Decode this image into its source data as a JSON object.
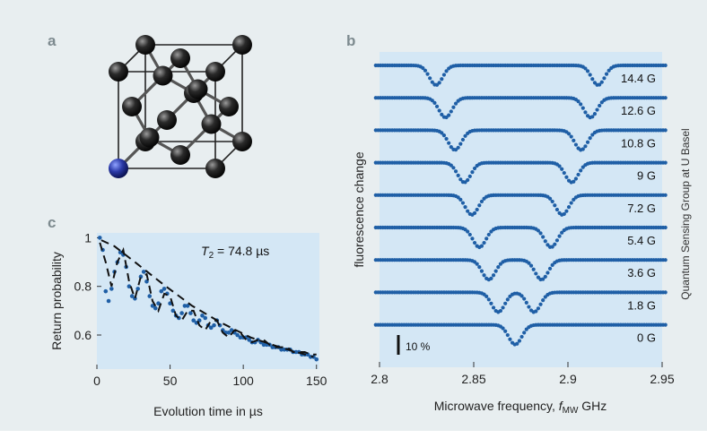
{
  "figure": {
    "panel_labels": [
      "a",
      "b",
      "c"
    ],
    "credit": "Quantum Sensing Group at U Basel",
    "background_color": "#e8eef0",
    "plot_color": "#d4e7f5",
    "data_color": "#1f5fa6",
    "fit_color": "#111111",
    "atom_color": "#1a1a1a",
    "nv_atom_color": "#2b3aa8"
  },
  "chart_data": [
    {
      "type": "line",
      "panel": "b",
      "title": "",
      "xlabel_prefix": "Microwave frequency, ",
      "xlabel_symbol": "f",
      "xlabel_subscript": "MW",
      "xlabel_unit": " GHz",
      "ylabel": "fluorescence change",
      "xlim": [
        2.8,
        2.95
      ],
      "x_ticks": [
        "2.8",
        "2.85",
        "2.9",
        "2.95"
      ],
      "x_tick_values": [
        2.8,
        2.85,
        2.9,
        2.95
      ],
      "scale_bar_label": "10 %",
      "scale_bar_value": 0.1,
      "center_frequency": 2.872,
      "dip_depth": 0.1,
      "series": [
        {
          "name": "14.4 G",
          "field_G": 14.4,
          "dips_GHz": [
            2.83,
            2.916
          ]
        },
        {
          "name": "12.6 G",
          "field_G": 12.6,
          "dips_GHz": [
            2.835,
            2.912
          ]
        },
        {
          "name": "10.8 G",
          "field_G": 10.8,
          "dips_GHz": [
            2.84,
            2.907
          ]
        },
        {
          "name": "9 G",
          "field_G": 9,
          "dips_GHz": [
            2.845,
            2.902
          ]
        },
        {
          "name": "7.2 G",
          "field_G": 7.2,
          "dips_GHz": [
            2.849,
            2.897
          ]
        },
        {
          "name": "5.4 G",
          "field_G": 5.4,
          "dips_GHz": [
            2.853,
            2.891
          ]
        },
        {
          "name": "3.6 G",
          "field_G": 3.6,
          "dips_GHz": [
            2.858,
            2.886
          ]
        },
        {
          "name": "1.8 G",
          "field_G": 1.8,
          "dips_GHz": [
            2.863,
            2.882
          ]
        },
        {
          "name": "0 G",
          "field_G": 0,
          "dips_GHz": [
            2.872
          ]
        }
      ]
    },
    {
      "type": "scatter",
      "panel": "c",
      "title": "",
      "xlabel": "Evolution time in µs",
      "ylabel": "Return probability",
      "xlim": [
        0,
        152
      ],
      "ylim": [
        0.46,
        1.02
      ],
      "x_ticks": [
        "0",
        "50",
        "100",
        "150"
      ],
      "x_tick_values": [
        0,
        50,
        100,
        150
      ],
      "y_ticks": [
        "1",
        "0.8",
        "0.6"
      ],
      "y_tick_values": [
        1,
        0.8,
        0.6
      ],
      "annotation_symbol": "T",
      "annotation_subscript": "2",
      "annotation_value": " = 74.8 µs",
      "T2_us": 74.8,
      "envelope": {
        "x": [
          3,
          12,
          26,
          45,
          65,
          85,
          105,
          125,
          148
        ],
        "y": [
          0.99,
          0.965,
          0.9,
          0.81,
          0.72,
          0.65,
          0.59,
          0.55,
          0.51
        ]
      },
      "fit": {
        "x": [
          2,
          6,
          10,
          14,
          18,
          22,
          26,
          30,
          34,
          38,
          42,
          46,
          50,
          54,
          58,
          62,
          66,
          70,
          74,
          78,
          82,
          86,
          90,
          94,
          98,
          102,
          106,
          110,
          114,
          118,
          122,
          126,
          130,
          134,
          138,
          142,
          146,
          150
        ],
        "y": [
          0.98,
          0.9,
          0.8,
          0.9,
          0.95,
          0.82,
          0.75,
          0.84,
          0.85,
          0.74,
          0.7,
          0.77,
          0.76,
          0.68,
          0.66,
          0.7,
          0.7,
          0.64,
          0.62,
          0.66,
          0.66,
          0.61,
          0.59,
          0.62,
          0.61,
          0.58,
          0.57,
          0.58,
          0.58,
          0.56,
          0.55,
          0.55,
          0.55,
          0.53,
          0.53,
          0.53,
          0.52,
          0.52
        ]
      },
      "points": {
        "x": [
          2,
          4,
          6,
          8,
          10,
          12,
          14,
          16,
          18,
          20,
          22,
          24,
          26,
          28,
          30,
          32,
          34,
          36,
          38,
          40,
          42,
          44,
          46,
          48,
          50,
          52,
          54,
          56,
          58,
          60,
          62,
          64,
          66,
          68,
          70,
          72,
          74,
          76,
          78,
          80,
          82,
          84,
          86,
          88,
          90,
          92,
          94,
          96,
          98,
          100,
          102,
          104,
          106,
          108,
          110,
          112,
          114,
          116,
          118,
          120,
          122,
          124,
          126,
          128,
          130,
          132,
          134,
          136,
          138,
          140,
          142,
          144,
          146,
          148,
          150
        ],
        "y": [
          1.0,
          0.95,
          0.78,
          0.74,
          0.79,
          0.86,
          0.9,
          0.94,
          0.93,
          0.88,
          0.8,
          0.76,
          0.75,
          0.79,
          0.84,
          0.86,
          0.82,
          0.76,
          0.72,
          0.71,
          0.73,
          0.78,
          0.79,
          0.77,
          0.73,
          0.7,
          0.68,
          0.67,
          0.69,
          0.72,
          0.72,
          0.69,
          0.66,
          0.65,
          0.66,
          0.68,
          0.67,
          0.64,
          0.63,
          0.64,
          0.66,
          0.64,
          0.62,
          0.61,
          0.61,
          0.62,
          0.61,
          0.6,
          0.59,
          0.59,
          0.59,
          0.58,
          0.57,
          0.57,
          0.58,
          0.57,
          0.56,
          0.56,
          0.56,
          0.55,
          0.55,
          0.55,
          0.54,
          0.54,
          0.54,
          0.54,
          0.53,
          0.53,
          0.53,
          0.52,
          0.52,
          0.52,
          0.51,
          0.51,
          0.5
        ]
      }
    }
  ]
}
